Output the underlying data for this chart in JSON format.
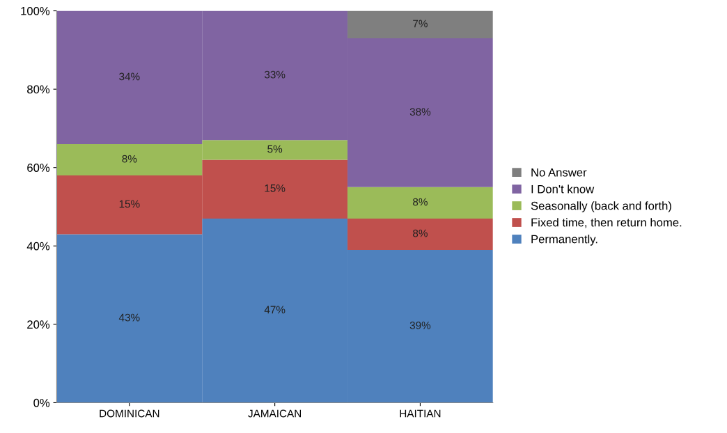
{
  "chart_data": {
    "type": "bar",
    "stacked": true,
    "categories": [
      "DOMINICAN",
      "JAMAICAN",
      "HAITIAN"
    ],
    "series": [
      {
        "name": "Permanently.",
        "color": "#4f81bd",
        "values": [
          43,
          47,
          39
        ],
        "value_labels": [
          "43%",
          "47%",
          "39%"
        ]
      },
      {
        "name": "Fixed time, then return home.",
        "color": "#c0504d",
        "values": [
          15,
          15,
          8
        ],
        "value_labels": [
          "15%",
          "15%",
          "8%"
        ]
      },
      {
        "name": "Seasonally (back and forth)",
        "color": "#9bbb59",
        "values": [
          8,
          5,
          8
        ],
        "value_labels": [
          "8%",
          "5%",
          "8%"
        ]
      },
      {
        "name": "I Don't know",
        "color": "#8064a2",
        "values": [
          34,
          33,
          38
        ],
        "value_labels": [
          "34%",
          "33%",
          "38%"
        ]
      },
      {
        "name": "No Answer",
        "color": "#7f7f7f",
        "values": [
          null,
          null,
          7
        ],
        "value_labels": [
          null,
          null,
          "7%"
        ]
      }
    ],
    "ylim": [
      0,
      100
    ],
    "yticks": [
      {
        "value": 0,
        "label": "0%"
      },
      {
        "value": 20,
        "label": "20%"
      },
      {
        "value": 40,
        "label": "40%"
      },
      {
        "value": 60,
        "label": "60%"
      },
      {
        "value": 80,
        "label": "80%"
      },
      {
        "value": 100,
        "label": "100%"
      }
    ],
    "grid": false,
    "legend": "right"
  }
}
